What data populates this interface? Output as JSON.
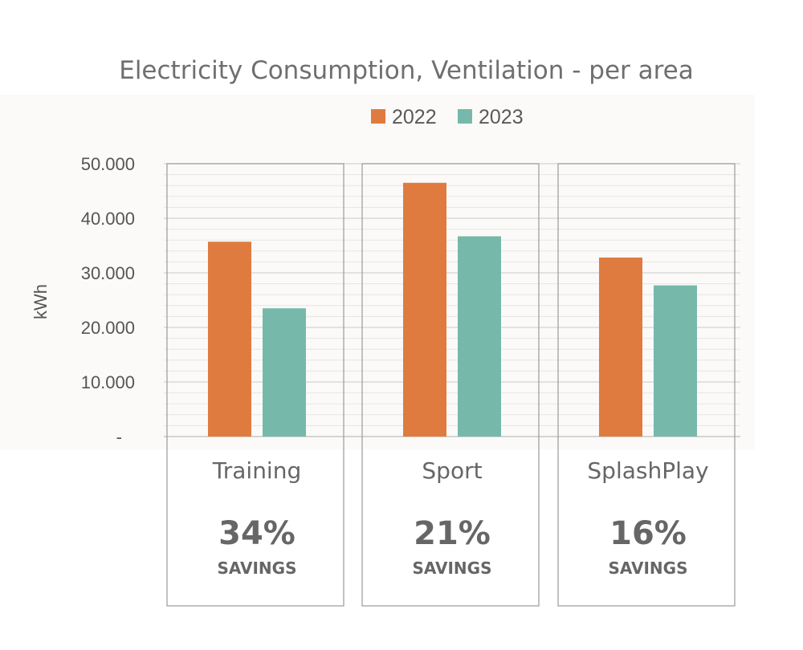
{
  "chart_data": {
    "type": "bar",
    "title": "Electricity Consumption, Ventilation - per area",
    "ylabel": "kWh",
    "xlabel": "",
    "ylim": [
      0,
      50000
    ],
    "yticks": [
      {
        "value": 0,
        "label": "-"
      },
      {
        "value": 10000,
        "label": "10.000"
      },
      {
        "value": 20000,
        "label": "20.000"
      },
      {
        "value": 30000,
        "label": "30.000"
      },
      {
        "value": 40000,
        "label": "40.000"
      },
      {
        "value": 50000,
        "label": "50.000"
      }
    ],
    "minor_gridlines_every": 2000,
    "grid": true,
    "legend_position": "top-center",
    "categories": [
      "Training",
      "Sport",
      "SplashPlay"
    ],
    "series": [
      {
        "name": "2022",
        "color": "#e07b3f",
        "values": [
          35700,
          46500,
          32800
        ]
      },
      {
        "name": "2023",
        "color": "#76b9aa",
        "values": [
          23500,
          36700,
          27700
        ]
      }
    ],
    "annotations": [
      {
        "category": "Training",
        "percent": "34%",
        "text": "SAVINGS"
      },
      {
        "category": "Sport",
        "percent": "21%",
        "text": "SAVINGS"
      },
      {
        "category": "SplashPlay",
        "percent": "16%",
        "text": "SAVINGS"
      }
    ]
  }
}
